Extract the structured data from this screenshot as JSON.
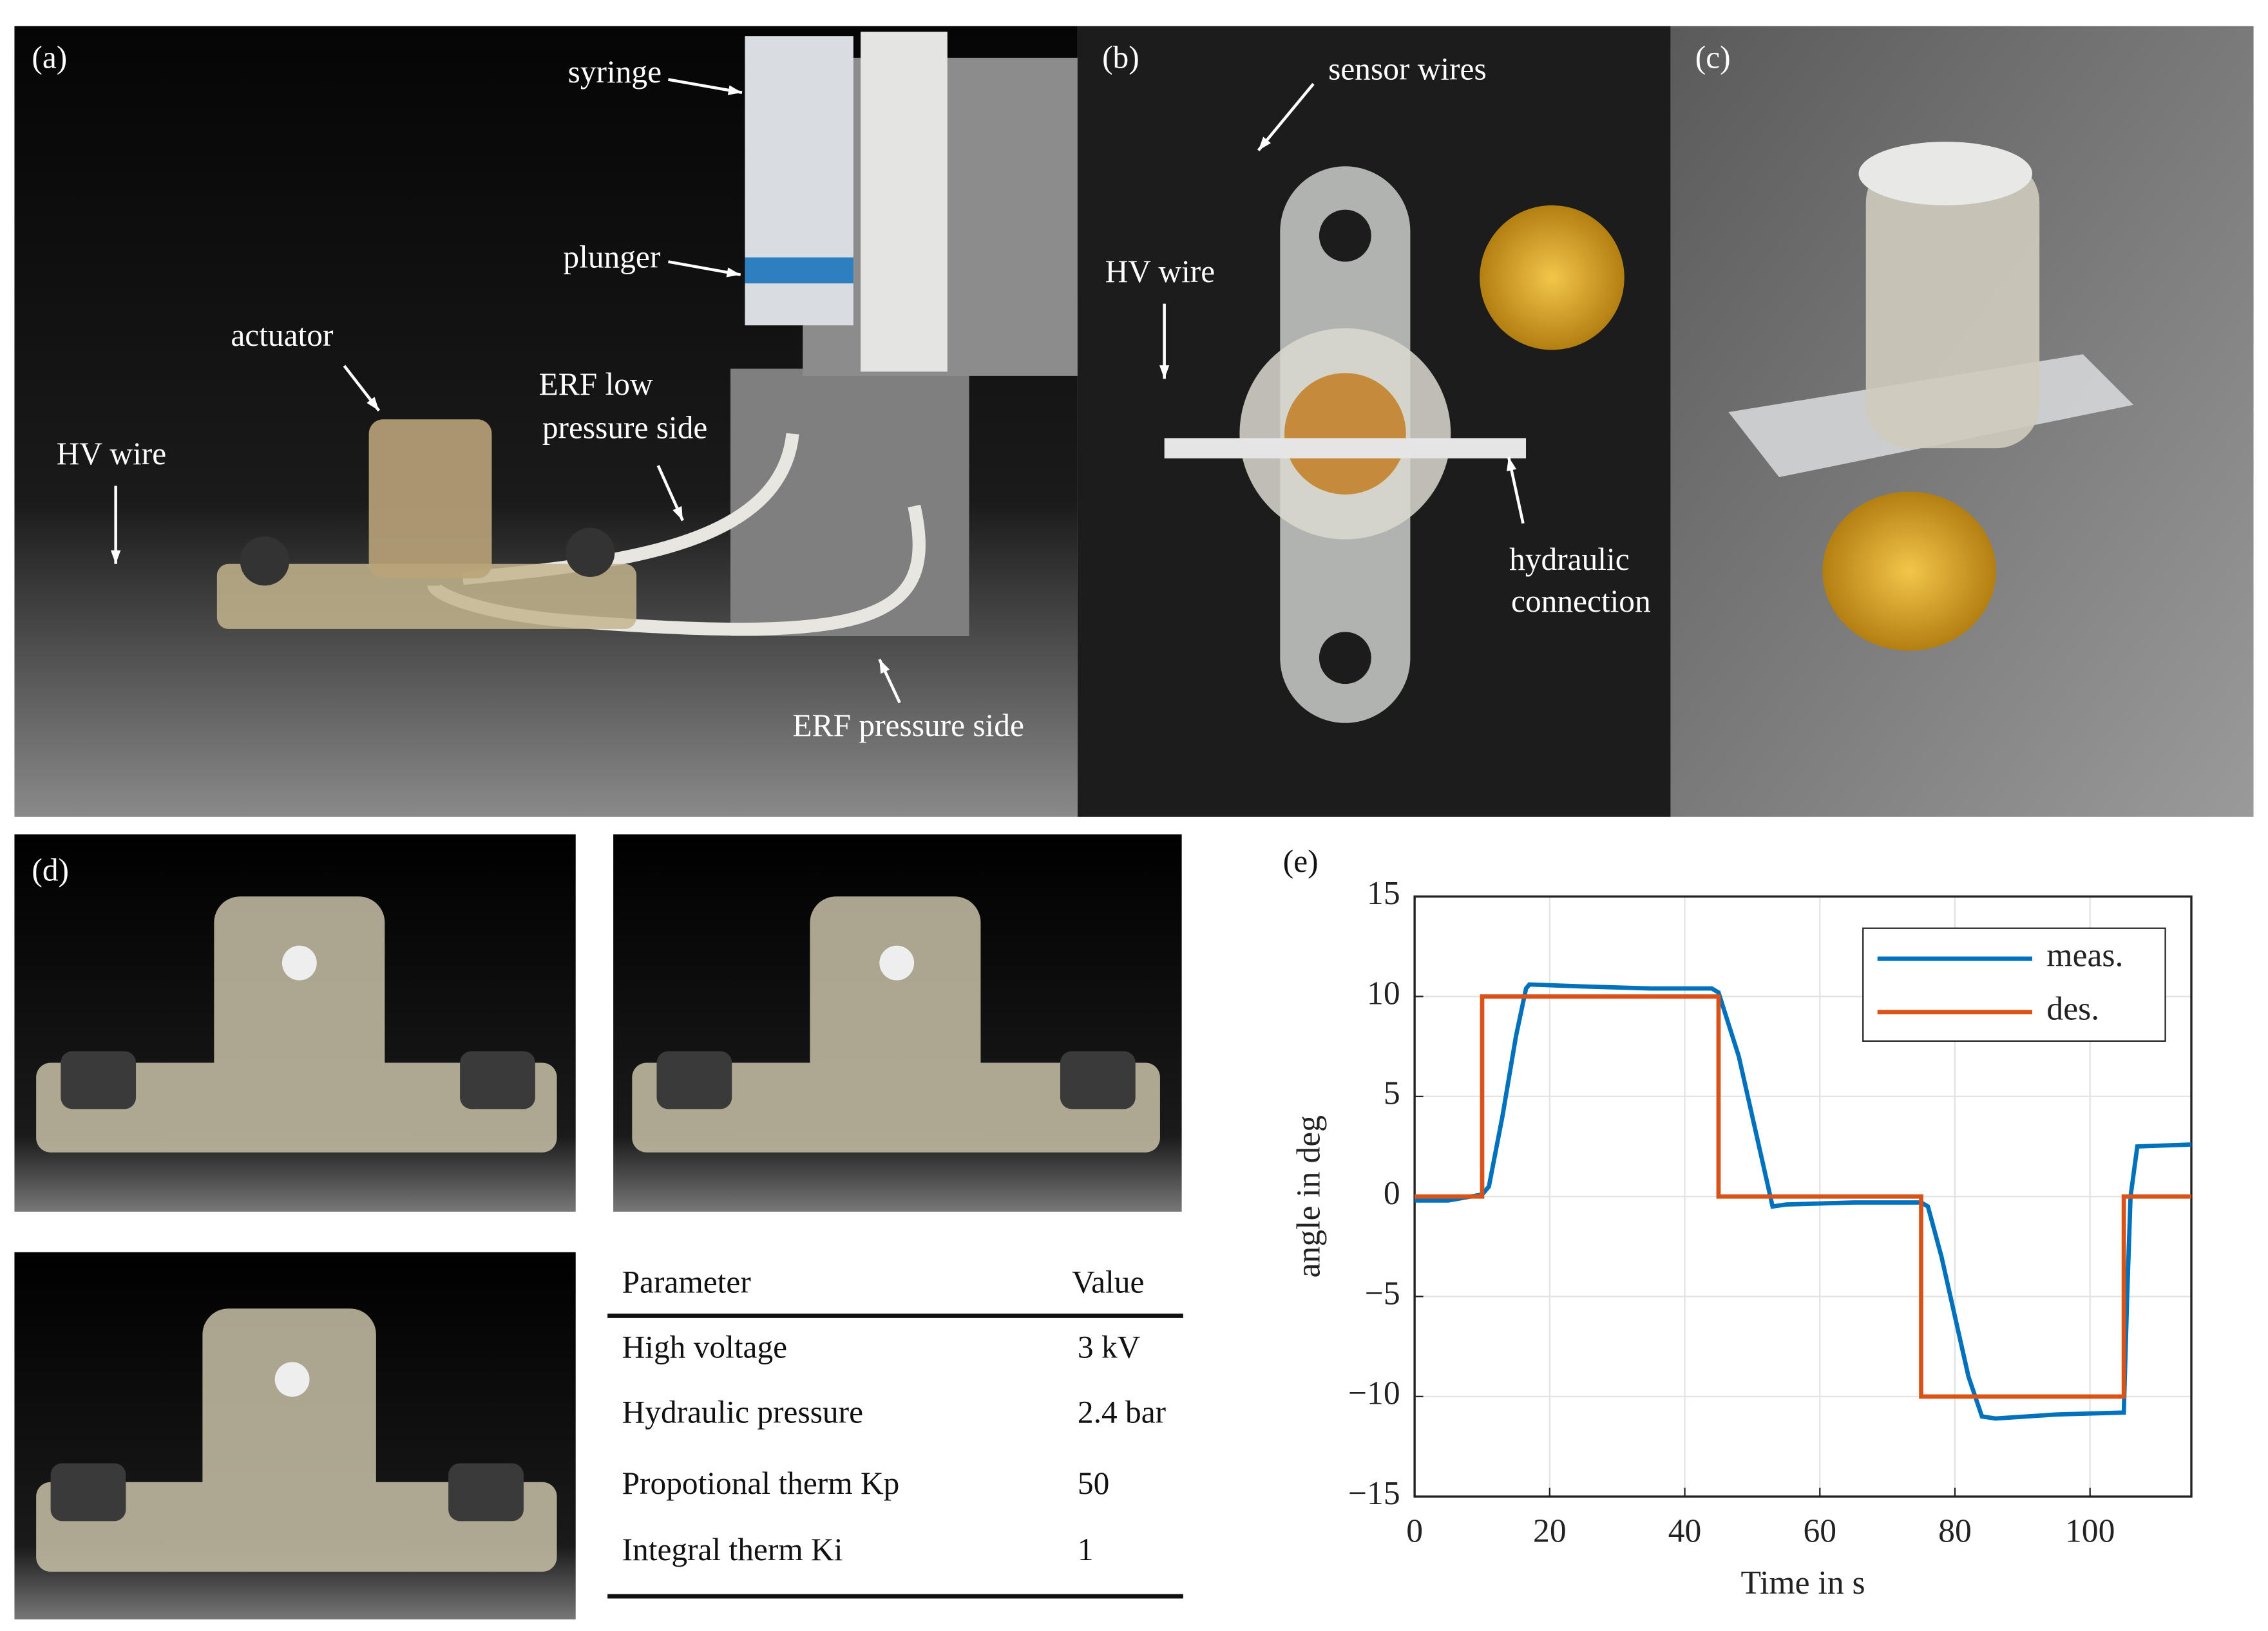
{
  "panel_labels": [
    "(a)",
    "(b)",
    "(c)",
    "(d)",
    "(e)"
  ],
  "photo_a_annotations": [
    [
      "syringe"
    ],
    [
      "plunger"
    ],
    [
      "actuator"
    ],
    [
      "HV wire"
    ],
    [
      "ERF low",
      "pressure side"
    ],
    [
      "ERF pressure side"
    ]
  ],
  "photo_b_annotations": [
    [
      "sensor wires"
    ],
    [
      "HV wire"
    ],
    [
      "hydraulic",
      "connection"
    ]
  ],
  "table": {
    "header": [
      "Parameter",
      "Value"
    ],
    "rows": [
      [
        "High voltage",
        "3 kV"
      ],
      [
        "Hydraulic pressure",
        "2.4 bar"
      ],
      [
        "Propotional therm Kp",
        "50"
      ],
      [
        "Integral therm Ki",
        "1"
      ]
    ]
  },
  "chart_data": {
    "type": "line",
    "xlabel": "Time in s",
    "ylabel": "angle in deg",
    "xlim": [
      0,
      115
    ],
    "ylim": [
      -15,
      15
    ],
    "xticks": [
      0,
      20,
      40,
      60,
      80,
      100
    ],
    "yticks": [
      {
        "value": -15,
        "label": "−15"
      },
      {
        "value": -10,
        "label": "−10"
      },
      {
        "value": -5,
        "label": "−5"
      },
      0,
      5,
      10,
      15
    ],
    "grid": true,
    "legend": "upper right",
    "series": [
      {
        "name": "meas.",
        "color": "#0072bd",
        "x": [
          0,
          5,
          10,
          11,
          13,
          15,
          16.5,
          17,
          25,
          35,
          44,
          45,
          48,
          50,
          52,
          53,
          55,
          65,
          75,
          76,
          78,
          80,
          82,
          84,
          86,
          95,
          105,
          105.5,
          106,
          107,
          115
        ],
        "values": [
          -0.2,
          -0.2,
          0.1,
          0.5,
          4,
          8,
          10.4,
          10.6,
          10.5,
          10.4,
          10.4,
          10.2,
          7,
          4,
          1,
          -0.5,
          -0.4,
          -0.3,
          -0.3,
          -0.5,
          -3,
          -6,
          -9,
          -11,
          -11.1,
          -10.9,
          -10.8,
          -5,
          0,
          2.5,
          2.6
        ]
      },
      {
        "name": "des.",
        "color": "#d95319",
        "x": [
          0,
          10,
          10,
          45,
          45,
          75,
          75,
          105,
          105,
          115
        ],
        "values": [
          0,
          0,
          10,
          10,
          0,
          0,
          -10,
          -10,
          0,
          0
        ]
      }
    ]
  }
}
